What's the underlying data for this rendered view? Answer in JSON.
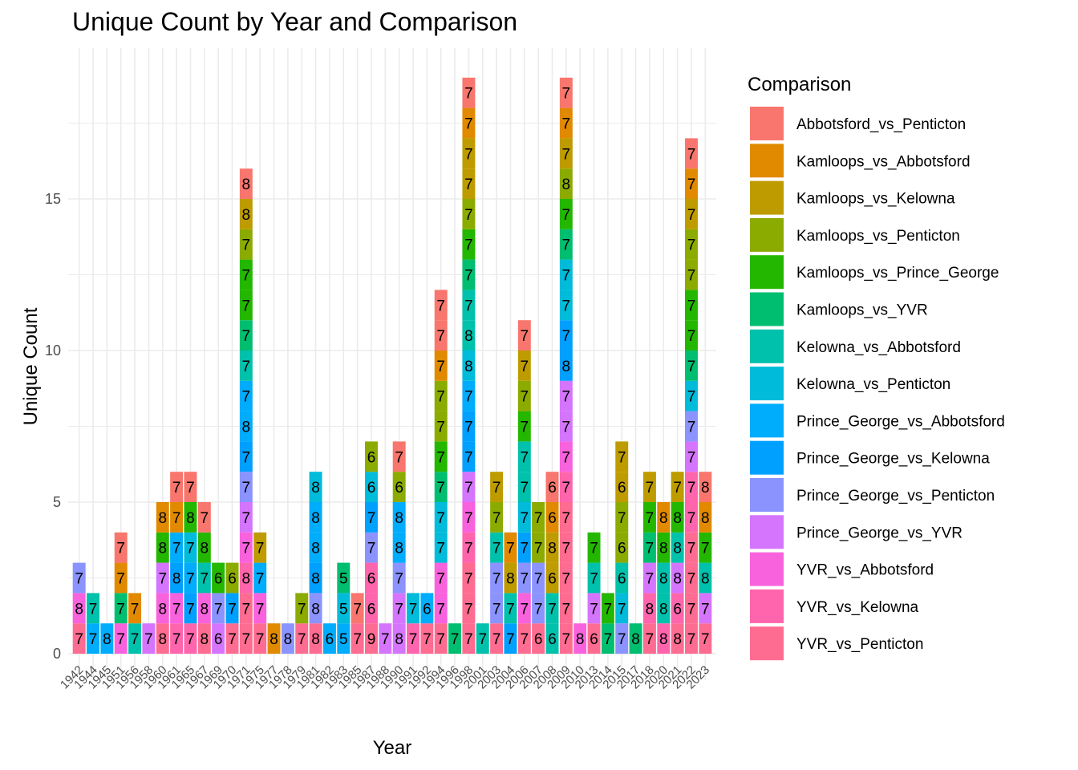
{
  "chart_data": {
    "type": "bar",
    "stacked": true,
    "title": "Unique Count by Year and Comparison",
    "xlabel": "Year",
    "ylabel": "Unique Count",
    "ylim": [
      0,
      19
    ],
    "yticks": [
      0,
      5,
      10,
      15
    ],
    "grid": true,
    "legend": {
      "title": "Comparison",
      "position": "right",
      "entries": [
        {
          "name": "Abbotsford_vs_Penticton",
          "color": "#F8766D"
        },
        {
          "name": "Kamloops_vs_Abbotsford",
          "color": "#E18A00"
        },
        {
          "name": "Kamloops_vs_Kelowna",
          "color": "#BE9C00"
        },
        {
          "name": "Kamloops_vs_Penticton",
          "color": "#8CAB00"
        },
        {
          "name": "Kamloops_vs_Prince_George",
          "color": "#24B700"
        },
        {
          "name": "Kamloops_vs_YVR",
          "color": "#00BE70"
        },
        {
          "name": "Kelowna_vs_Abbotsford",
          "color": "#00C1AB"
        },
        {
          "name": "Kelowna_vs_Penticton",
          "color": "#00BBDA"
        },
        {
          "name": "Prince_George_vs_Abbotsford",
          "color": "#00ACFC"
        },
        {
          "name": "Prince_George_vs_Kelowna",
          "color": "#00A0FF"
        },
        {
          "name": "Prince_George_vs_Penticton",
          "color": "#8B93FF"
        },
        {
          "name": "Prince_George_vs_YVR",
          "color": "#D575FE"
        },
        {
          "name": "YVR_vs_Abbotsford",
          "color": "#F962DD"
        },
        {
          "name": "YVR_vs_Kelowna",
          "color": "#FF65AC"
        },
        {
          "name": "YVR_vs_Penticton",
          "color": "#FF6C91"
        }
      ]
    },
    "categories": [
      "1942",
      "1944",
      "1945",
      "1951",
      "1956",
      "1958",
      "1960",
      "1961",
      "1965",
      "1967",
      "1969",
      "1970",
      "1971",
      "1975",
      "1977",
      "1978",
      "1979",
      "1981",
      "1982",
      "1983",
      "1985",
      "1987",
      "1988",
      "1990",
      "1991",
      "1992",
      "1994",
      "1996",
      "1998",
      "2001",
      "2003",
      "2004",
      "2006",
      "2007",
      "2008",
      "2009",
      "2010",
      "2013",
      "2014",
      "2015",
      "2017",
      "2018",
      "2020",
      "2021",
      "2022",
      "2023"
    ],
    "stacks": [
      {
        "year": "1942",
        "segments": [
          [
            14,
            7
          ],
          [
            12,
            8
          ],
          [
            10,
            7
          ]
        ]
      },
      {
        "year": "1944",
        "segments": [
          [
            8,
            7
          ],
          [
            6,
            7
          ]
        ]
      },
      {
        "year": "1945",
        "segments": [
          [
            8,
            8
          ]
        ]
      },
      {
        "year": "1951",
        "segments": [
          [
            12,
            7
          ],
          [
            5,
            7
          ],
          [
            1,
            7
          ],
          [
            0,
            7
          ]
        ]
      },
      {
        "year": "1956",
        "segments": [
          [
            6,
            7
          ],
          [
            1,
            7
          ]
        ]
      },
      {
        "year": "1958",
        "segments": [
          [
            11,
            7
          ]
        ]
      },
      {
        "year": "1960",
        "segments": [
          [
            14,
            8
          ],
          [
            12,
            8
          ],
          [
            11,
            7
          ],
          [
            4,
            8
          ],
          [
            1,
            8
          ]
        ]
      },
      {
        "year": "1961",
        "segments": [
          [
            13,
            7
          ],
          [
            12,
            7
          ],
          [
            9,
            8
          ],
          [
            8,
            7
          ],
          [
            1,
            7
          ],
          [
            0,
            7
          ]
        ]
      },
      {
        "year": "1965",
        "segments": [
          [
            13,
            7
          ],
          [
            9,
            7
          ],
          [
            8,
            7
          ],
          [
            7,
            7
          ],
          [
            4,
            8
          ],
          [
            0,
            7
          ]
        ]
      },
      {
        "year": "1967",
        "segments": [
          [
            14,
            8
          ],
          [
            12,
            8
          ],
          [
            6,
            7
          ],
          [
            4,
            8
          ],
          [
            0,
            7
          ]
        ]
      },
      {
        "year": "1969",
        "segments": [
          [
            11,
            6
          ],
          [
            10,
            7
          ],
          [
            4,
            6
          ]
        ]
      },
      {
        "year": "1970",
        "segments": [
          [
            14,
            7
          ],
          [
            9,
            7
          ],
          [
            3,
            6
          ]
        ]
      },
      {
        "year": "1971",
        "segments": [
          [
            14,
            7
          ],
          [
            0,
            8
          ],
          [
            2,
            8
          ],
          [
            3,
            7
          ],
          [
            4,
            7
          ],
          [
            5,
            7
          ],
          [
            6,
            7
          ],
          [
            8,
            8
          ],
          [
            8,
            7
          ],
          [
            9,
            7
          ],
          [
            10,
            7
          ],
          [
            11,
            7
          ],
          [
            13,
            8
          ],
          [
            12,
            7
          ],
          [
            14,
            7
          ],
          [
            4,
            7
          ]
        ]
      },
      {
        "year": "1975",
        "segments": [
          [
            14,
            7
          ],
          [
            12,
            7
          ],
          [
            8,
            7
          ],
          [
            2,
            7
          ]
        ]
      },
      {
        "year": "1977",
        "segments": [
          [
            1,
            8
          ]
        ]
      },
      {
        "year": "1978",
        "segments": [
          [
            10,
            8
          ]
        ]
      },
      {
        "year": "1979",
        "segments": [
          [
            3,
            7
          ],
          [
            14,
            7
          ]
        ]
      },
      {
        "year": "1981",
        "segments": [
          [
            7,
            8
          ],
          [
            8,
            8
          ],
          [
            8,
            8
          ],
          [
            9,
            8
          ],
          [
            10,
            8
          ],
          [
            14,
            8
          ]
        ]
      },
      {
        "year": "1982",
        "segments": [
          [
            8,
            6
          ]
        ]
      },
      {
        "year": "1983",
        "segments": [
          [
            5,
            5
          ],
          [
            7,
            5
          ],
          [
            8,
            5
          ]
        ]
      },
      {
        "year": "1985",
        "segments": [
          [
            0,
            7
          ],
          [
            14,
            7
          ]
        ]
      },
      {
        "year": "1987",
        "segments": [
          [
            3,
            6
          ],
          [
            7,
            6
          ],
          [
            9,
            7
          ],
          [
            10,
            7
          ],
          [
            13,
            6
          ],
          [
            13,
            6
          ],
          [
            14,
            9
          ]
        ]
      },
      {
        "year": "1988",
        "segments": [
          [
            11,
            7
          ]
        ]
      },
      {
        "year": "1990",
        "segments": [
          [
            0,
            7
          ],
          [
            3,
            6
          ],
          [
            8,
            8
          ],
          [
            8,
            8
          ],
          [
            10,
            7
          ],
          [
            11,
            8
          ],
          [
            11,
            7
          ]
        ]
      },
      {
        "year": "1991",
        "segments": [
          [
            7,
            7
          ],
          [
            13,
            7
          ]
        ]
      },
      {
        "year": "1992",
        "segments": [
          [
            8,
            6
          ],
          [
            14,
            7
          ]
        ]
      },
      {
        "year": "1994",
        "segments": [
          [
            0,
            7
          ],
          [
            0,
            7
          ],
          [
            1,
            7
          ],
          [
            3,
            7
          ],
          [
            3,
            7
          ],
          [
            4,
            7
          ],
          [
            5,
            7
          ],
          [
            7,
            7
          ],
          [
            7,
            7
          ],
          [
            12,
            7
          ],
          [
            12,
            7
          ],
          [
            14,
            7
          ]
        ]
      },
      {
        "year": "1996",
        "segments": [
          [
            5,
            7
          ]
        ]
      },
      {
        "year": "1998",
        "segments": [
          [
            0,
            7
          ],
          [
            1,
            7
          ],
          [
            2,
            7
          ],
          [
            2,
            7
          ],
          [
            3,
            7
          ],
          [
            4,
            7
          ],
          [
            5,
            7
          ],
          [
            6,
            8
          ],
          [
            6,
            7
          ],
          [
            7,
            8
          ],
          [
            8,
            7
          ],
          [
            9,
            7
          ],
          [
            9,
            7
          ],
          [
            11,
            7
          ],
          [
            12,
            7
          ],
          [
            13,
            7
          ],
          [
            14,
            7
          ],
          [
            14,
            7
          ],
          [
            14,
            7
          ]
        ]
      },
      {
        "year": "2001",
        "segments": [
          [
            6,
            7
          ]
        ]
      },
      {
        "year": "2003",
        "segments": [
          [
            2,
            7
          ],
          [
            3,
            7
          ],
          [
            6,
            7
          ],
          [
            10,
            7
          ],
          [
            10,
            7
          ],
          [
            14,
            7
          ]
        ]
      },
      {
        "year": "2004",
        "segments": [
          [
            1,
            7
          ],
          [
            2,
            8
          ],
          [
            6,
            7
          ],
          [
            9,
            7
          ]
        ]
      },
      {
        "year": "2006",
        "segments": [
          [
            0,
            7
          ],
          [
            2,
            7
          ],
          [
            3,
            7
          ],
          [
            4,
            7
          ],
          [
            6,
            7
          ],
          [
            6,
            7
          ],
          [
            7,
            7
          ],
          [
            9,
            7
          ],
          [
            10,
            7
          ],
          [
            12,
            7
          ],
          [
            14,
            7
          ]
        ]
      },
      {
        "year": "2007",
        "segments": [
          [
            3,
            7
          ],
          [
            3,
            7
          ],
          [
            10,
            7
          ],
          [
            10,
            7
          ],
          [
            14,
            6
          ]
        ]
      },
      {
        "year": "2008",
        "segments": [
          [
            0,
            6
          ],
          [
            1,
            6
          ],
          [
            2,
            6
          ],
          [
            2,
            8
          ],
          [
            6,
            6
          ],
          [
            6,
            7
          ]
        ]
      },
      {
        "year": "2009",
        "segments": [
          [
            0,
            7
          ],
          [
            1,
            7
          ],
          [
            2,
            7
          ],
          [
            3,
            8
          ],
          [
            4,
            7
          ],
          [
            5,
            7
          ],
          [
            7,
            7
          ],
          [
            7,
            7
          ],
          [
            9,
            8
          ],
          [
            9,
            7
          ],
          [
            11,
            7
          ],
          [
            11,
            7
          ],
          [
            12,
            7
          ],
          [
            13,
            7
          ],
          [
            14,
            7
          ],
          [
            14,
            7
          ],
          [
            14,
            7
          ],
          [
            14,
            7
          ],
          [
            14,
            7
          ]
        ]
      },
      {
        "year": "2010",
        "segments": [
          [
            12,
            8
          ]
        ]
      },
      {
        "year": "2013",
        "segments": [
          [
            4,
            7
          ],
          [
            6,
            7
          ],
          [
            11,
            7
          ],
          [
            14,
            6
          ]
        ]
      },
      {
        "year": "2014",
        "segments": [
          [
            4,
            7
          ],
          [
            5,
            7
          ]
        ]
      },
      {
        "year": "2015",
        "segments": [
          [
            2,
            6
          ],
          [
            2,
            7
          ],
          [
            3,
            6
          ],
          [
            3,
            7
          ],
          [
            6,
            6
          ],
          [
            7,
            7
          ],
          [
            10,
            7
          ]
        ]
      },
      {
        "year": "2017",
        "segments": [
          [
            5,
            8
          ]
        ]
      },
      {
        "year": "2018",
        "segments": [
          [
            2,
            7
          ],
          [
            4,
            7
          ],
          [
            5,
            7
          ],
          [
            11,
            7
          ],
          [
            13,
            8
          ],
          [
            14,
            7
          ]
        ]
      },
      {
        "year": "2020",
        "segments": [
          [
            1,
            8
          ],
          [
            4,
            8
          ],
          [
            6,
            8
          ],
          [
            6,
            8
          ],
          [
            13,
            8
          ]
        ]
      },
      {
        "year": "2021",
        "segments": [
          [
            2,
            7
          ],
          [
            4,
            8
          ],
          [
            6,
            8
          ],
          [
            11,
            8
          ],
          [
            13,
            6
          ],
          [
            14,
            8
          ]
        ]
      },
      {
        "year": "2022",
        "segments": [
          [
            0,
            7
          ],
          [
            1,
            7
          ],
          [
            2,
            7
          ],
          [
            3,
            7
          ],
          [
            3,
            7
          ],
          [
            4,
            7
          ],
          [
            4,
            7
          ],
          [
            5,
            7
          ],
          [
            7,
            7
          ],
          [
            10,
            7
          ],
          [
            11,
            7
          ],
          [
            13,
            7
          ],
          [
            13,
            7
          ],
          [
            14,
            7
          ],
          [
            14,
            7
          ],
          [
            14,
            7
          ],
          [
            14,
            7
          ]
        ]
      },
      {
        "year": "2023",
        "segments": [
          [
            0,
            8
          ],
          [
            1,
            8
          ],
          [
            4,
            7
          ],
          [
            6,
            8
          ],
          [
            11,
            7
          ],
          [
            14,
            7
          ]
        ]
      }
    ]
  }
}
